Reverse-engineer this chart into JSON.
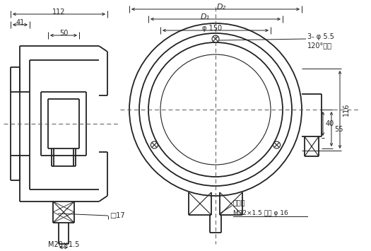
{
  "bg_color": "#ffffff",
  "line_color": "#222222",
  "fig_width": 5.25,
  "fig_height": 3.55,
  "dpi": 100,
  "annotations": {
    "dim_112": "112",
    "dim_41": "41",
    "dim_50": "50",
    "dim_D2": "D₂",
    "dim_D1": "D₁",
    "dim_phi150": "φ 150",
    "dim_3phi55": "3- φ 5.5",
    "dim_120": "120°均布",
    "dim_40": "40",
    "dim_55": "55",
    "dim_116": "116",
    "dim_box17": "□17",
    "dim_M20": "M20×1.5",
    "dim_pxk": "配线口",
    "dim_M22": "M22×1.5 内孔 φ 16"
  }
}
